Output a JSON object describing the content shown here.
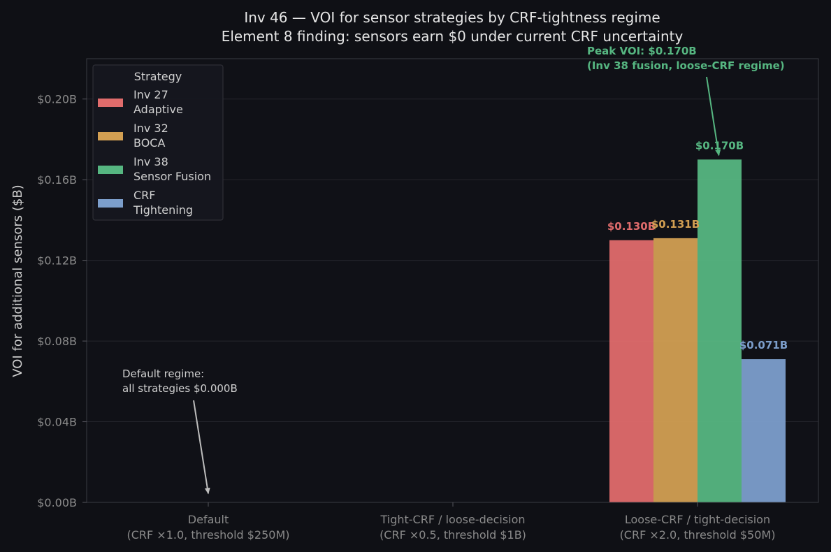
{
  "chart_data": {
    "type": "bar",
    "title": "Inv 46 — VOI for sensor strategies by CRF-tightness regime",
    "subtitle": "Element 8 finding: sensors earn $0 under current CRF uncertainty",
    "xlabel": "",
    "ylabel": "VOI for additional sensors ($B)",
    "ylim": [
      0,
      0.22
    ],
    "yticks": [
      0,
      0.04,
      0.08,
      0.12,
      0.16,
      0.2
    ],
    "ytick_labels": [
      "$0.00B",
      "$0.04B",
      "$0.08B",
      "$0.12B",
      "$0.16B",
      "$0.20B"
    ],
    "grid": true,
    "categories": [
      [
        "Default",
        "(CRF ×1.0, threshold $250M)"
      ],
      [
        "Tight-CRF / loose-decision",
        "(CRF ×0.5, threshold $1B)"
      ],
      [
        "Loose-CRF / tight-decision",
        "(CRF ×2.0, threshold $50M)"
      ]
    ],
    "series": [
      {
        "name": [
          "Inv 27",
          "Adaptive"
        ],
        "color": "#e06c6c",
        "values": [
          0,
          0,
          0.13
        ],
        "labels": [
          "",
          "",
          "$0.130B"
        ]
      },
      {
        "name": [
          "Inv 32",
          "BOCA"
        ],
        "color": "#d29f52",
        "values": [
          0,
          0,
          0.131
        ],
        "labels": [
          "",
          "",
          "$0.131B"
        ]
      },
      {
        "name": [
          "Inv 38",
          "Sensor Fusion"
        ],
        "color": "#56b681",
        "values": [
          0,
          0,
          0.17
        ],
        "labels": [
          "",
          "",
          "$0.170B"
        ]
      },
      {
        "name": [
          "CRF",
          "Tightening"
        ],
        "color": "#7c9ecb",
        "values": [
          0,
          0,
          0.071
        ],
        "labels": [
          "",
          "",
          "$0.071B"
        ]
      }
    ],
    "legend": {
      "title": "Strategy",
      "placement": "top-left"
    },
    "annotations": [
      {
        "lines": [
          "Default regime:",
          "all strategies $0.000B"
        ],
        "color": "#cfcfcf",
        "target_category": 0,
        "target_value": 0.003,
        "bold": false
      },
      {
        "lines": [
          "Peak VOI: $0.170B",
          "(Inv 38 fusion, loose-CRF regime)"
        ],
        "color": "#56b681",
        "target_category": 2,
        "target_series": 2,
        "target_value": 0.17,
        "bold": true
      }
    ]
  }
}
